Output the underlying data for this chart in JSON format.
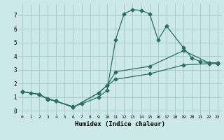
{
  "xlabel": "Humidex (Indice chaleur)",
  "bg_color": "#cce8e8",
  "grid_color": "#aacccc",
  "line_color": "#2d6e63",
  "xlim": [
    -0.5,
    23.5
  ],
  "ylim": [
    -0.3,
    7.8
  ],
  "xticks": [
    0,
    1,
    2,
    3,
    4,
    5,
    6,
    7,
    8,
    9,
    10,
    11,
    12,
    13,
    14,
    15,
    16,
    17,
    18,
    19,
    20,
    21,
    22,
    23
  ],
  "yticks": [
    0,
    1,
    2,
    3,
    4,
    5,
    6,
    7
  ],
  "line1_x": [
    0,
    1,
    2,
    3,
    4,
    6,
    7,
    9,
    10,
    11,
    12,
    13,
    14,
    15,
    16,
    17,
    19,
    20,
    21,
    22,
    23
  ],
  "line1_y": [
    1.4,
    1.3,
    1.2,
    0.9,
    0.7,
    0.3,
    0.5,
    1.0,
    1.5,
    5.2,
    7.1,
    7.4,
    7.35,
    7.1,
    5.2,
    6.2,
    4.6,
    3.85,
    3.6,
    3.5,
    3.5
  ],
  "line2_x": [
    0,
    2,
    3,
    4,
    6,
    9,
    10,
    11,
    15,
    19,
    22,
    23
  ],
  "line2_y": [
    1.4,
    1.2,
    0.85,
    0.7,
    0.25,
    1.3,
    1.85,
    2.85,
    3.25,
    4.4,
    3.5,
    3.5
  ],
  "line3_x": [
    0,
    2,
    3,
    4,
    6,
    9,
    10,
    11,
    15,
    19,
    22,
    23
  ],
  "line3_y": [
    1.4,
    1.2,
    0.85,
    0.7,
    0.25,
    1.3,
    1.85,
    2.3,
    2.7,
    3.35,
    3.45,
    3.45
  ],
  "marker": "D",
  "markersize": 2.5,
  "linewidth": 0.9
}
